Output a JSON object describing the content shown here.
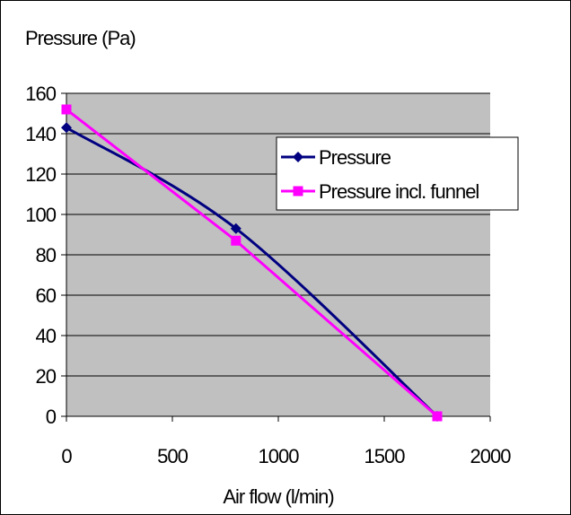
{
  "chart_data": {
    "type": "line",
    "ylabel": "Pressure (Pa)",
    "xlabel": "Air flow (l/min)",
    "xlim": [
      0,
      2000
    ],
    "ylim": [
      0,
      160
    ],
    "x_ticks": [
      0,
      500,
      1000,
      1500,
      2000
    ],
    "y_ticks": [
      0,
      20,
      40,
      60,
      80,
      100,
      120,
      140,
      160
    ],
    "grid": "horizontal",
    "plot_background": "#c0c0c0",
    "legend_position": "right",
    "series": [
      {
        "name": "Pressure",
        "color": "#000080",
        "marker": "diamond",
        "smooth": true,
        "points": [
          [
            0,
            143
          ],
          [
            800,
            93
          ],
          [
            1750,
            0
          ]
        ]
      },
      {
        "name": "Pressure  incl. funnel",
        "color": "#ff00ff",
        "marker": "square",
        "smooth": false,
        "points": [
          [
            0,
            152
          ],
          [
            800,
            87
          ],
          [
            1750,
            0
          ]
        ]
      }
    ]
  }
}
